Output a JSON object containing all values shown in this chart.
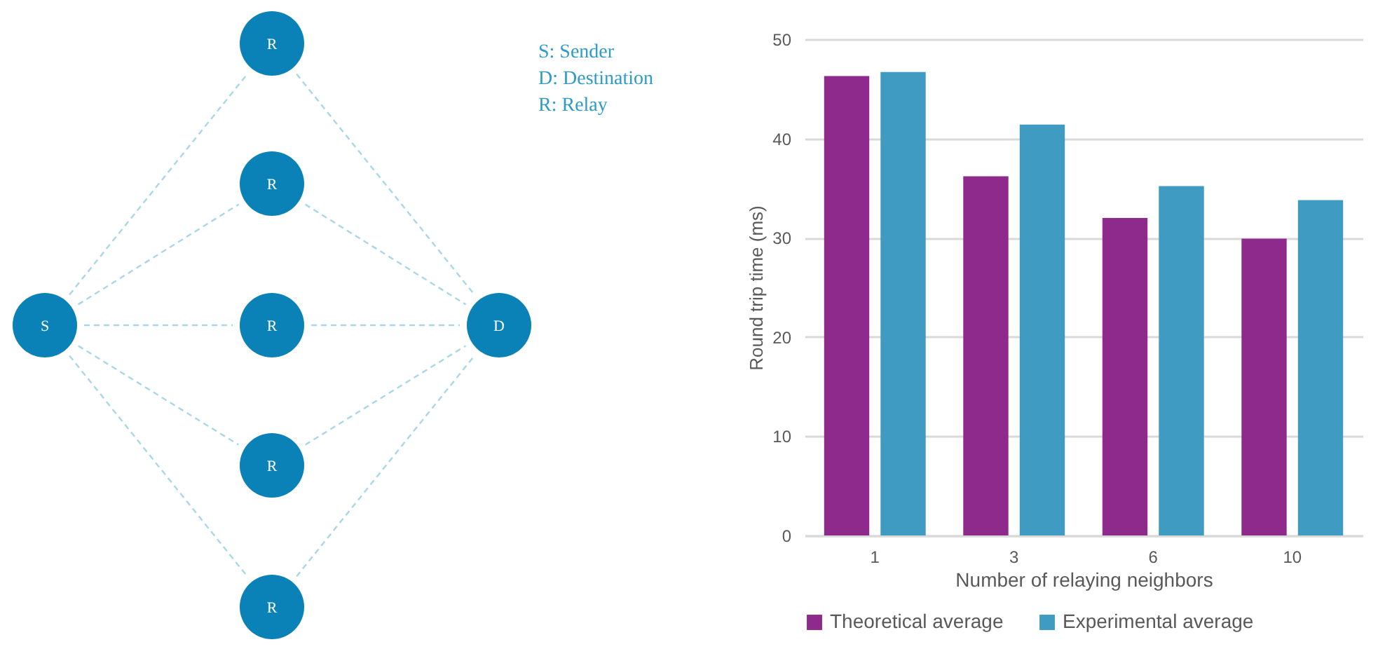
{
  "chart_data": [
    {
      "type": "other",
      "annotations": [
        "S",
        "R",
        "R",
        "R",
        "R",
        "R",
        "D",
        "S: Sender",
        "D: Destination",
        "R: Relay"
      ]
    },
    {
      "type": "bar",
      "xlabel": "Number of relaying neighbors",
      "ylabel": "Round trip time (ms)",
      "categories": [
        "1",
        "3",
        "6",
        "10"
      ],
      "series": [
        {
          "name": "Theoretical average",
          "color": "#8e2a8b",
          "values": [
            46.3,
            36.2,
            32.0,
            29.9
          ]
        },
        {
          "name": "Experimental average",
          "color": "#3f9bc1",
          "values": [
            46.7,
            41.4,
            35.2,
            33.8
          ]
        }
      ],
      "ylim": [
        0,
        50
      ],
      "yticks": [
        0,
        10,
        20,
        30,
        40,
        50
      ],
      "grid": "y",
      "legend": "bottom"
    }
  ]
}
